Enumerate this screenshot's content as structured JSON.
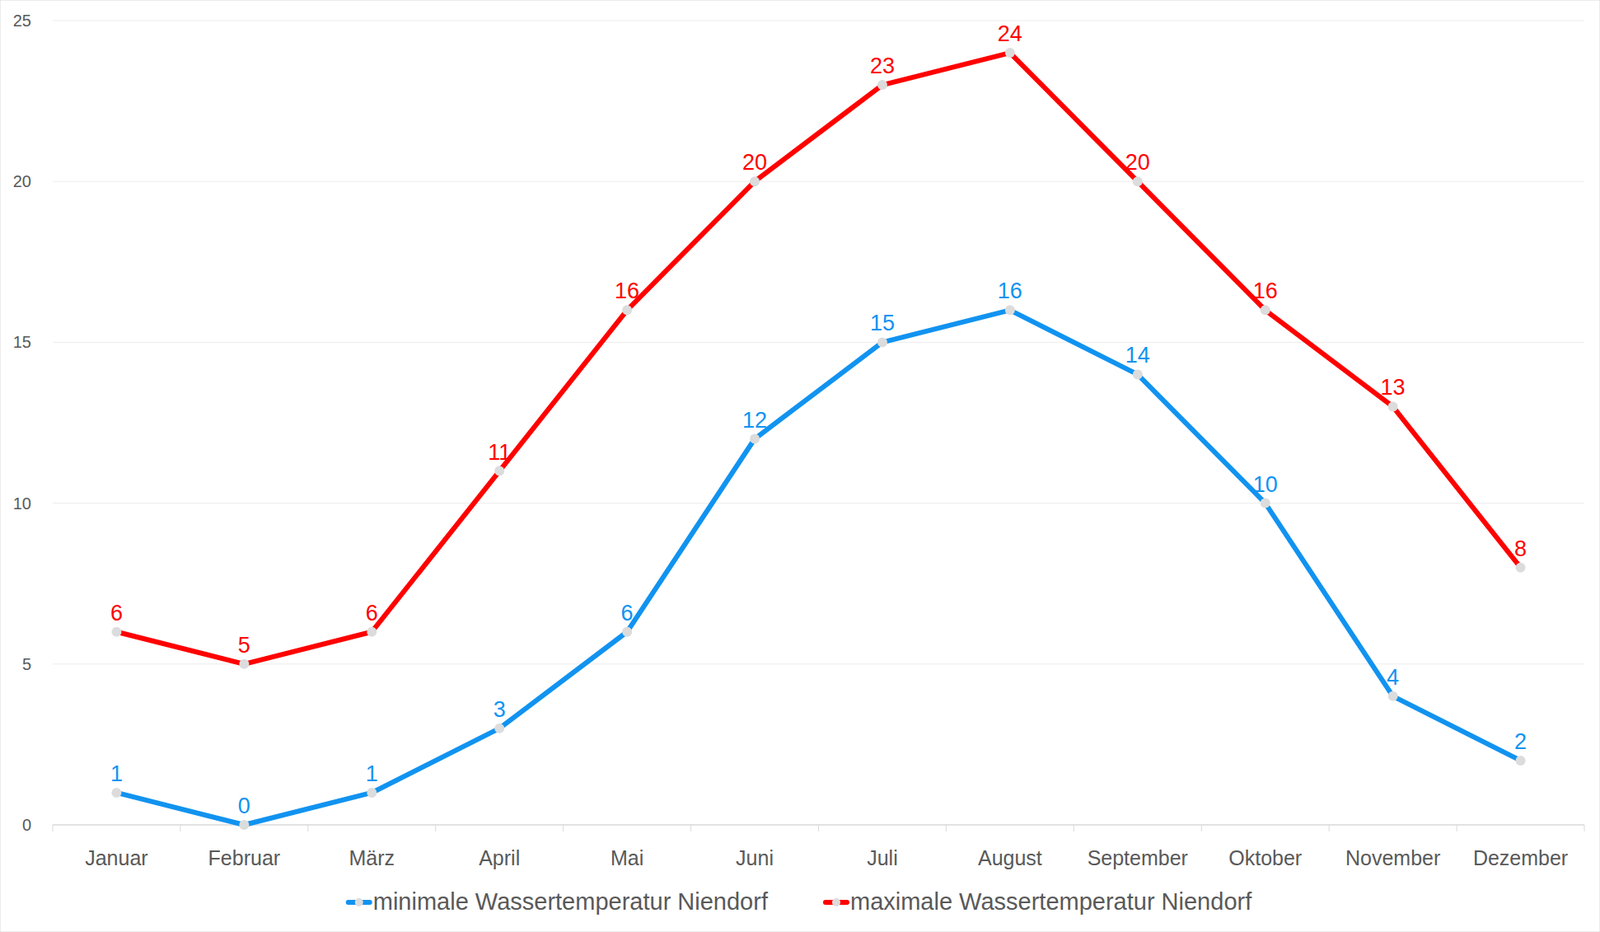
{
  "chart_data": {
    "type": "line",
    "categories": [
      "Januar",
      "Februar",
      "März",
      "April",
      "Mai",
      "Juni",
      "Juli",
      "August",
      "September",
      "Oktober",
      "November",
      "Dezember"
    ],
    "series": [
      {
        "name": "minimale Wassertemperatur Niendorf",
        "color": "#1193f0",
        "marker": "circle",
        "line_style": "solid",
        "values": [
          1,
          0,
          1,
          3,
          6,
          12,
          15,
          16,
          14,
          10,
          4,
          2
        ]
      },
      {
        "name": "maximale Wassertemperatur Niendorf",
        "color": "#ff0000",
        "marker": "circle",
        "line_style": "solid",
        "values": [
          6,
          5,
          6,
          11,
          16,
          20,
          23,
          24,
          20,
          16,
          13,
          8
        ]
      }
    ],
    "ylim": [
      0,
      25
    ],
    "yticks": [
      0,
      5,
      10,
      15,
      20,
      25
    ],
    "grid": true,
    "legend": "bottom",
    "data_labels": true
  }
}
